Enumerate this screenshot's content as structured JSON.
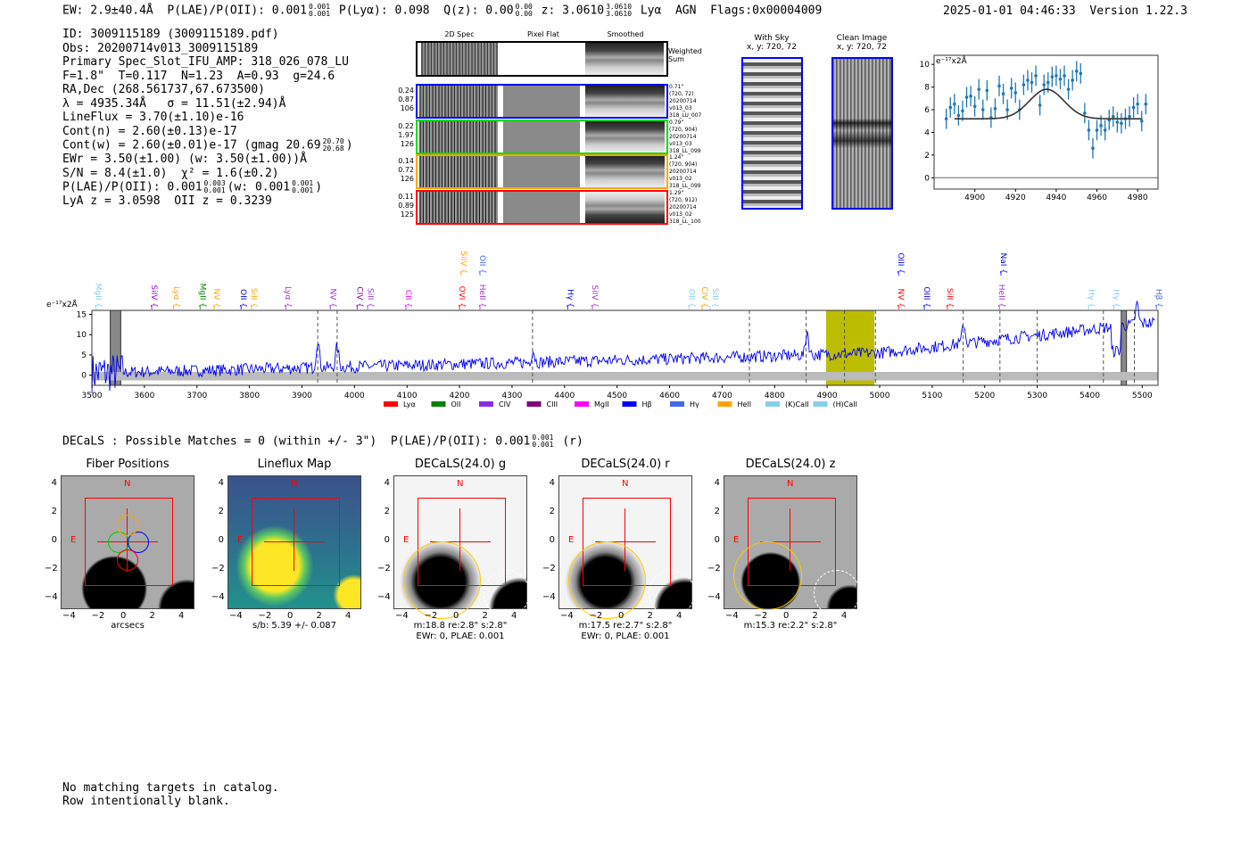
{
  "header": {
    "ew": "EW: 2.9±40.4Å",
    "plae": "P(LAE)/P(OII): 0.001",
    "plae_hi": "0.001",
    "plae_lo": "0.001",
    "plya": "P(Lyα): 0.098",
    "qz": "Q(z): 0.00",
    "qz_hi": "0.00",
    "qz_lo": "0.00",
    "z": "z: 3.0610",
    "z_hi": "3.0610",
    "z_lo": "3.0610",
    "tags": "Lyα  AGN  Flags:0x00004009",
    "date": "2025-01-01 04:46:33",
    "version": "Version 1.22.3"
  },
  "info": {
    "id": "ID: 3009115189 (3009115189.pdf)",
    "obs": "Obs: 20200714v013_3009115189",
    "primary": "Primary Spec_Slot_IFU_AMP: 318_026_078_LU",
    "params": "F=1.8\"  T=0.117  N=1.23  A=0.93  g=24.6",
    "radec": "RA,Dec (268.561737,67.673500)",
    "lambda": "λ = 4935.34Å   σ = 11.51(±2.94)Å",
    "lineflux": "LineFlux = 3.70(±1.10)e-16",
    "contn": "Cont(n) = 2.60(±0.13)e-17",
    "contw": "Cont(w) = 2.60(±0.01)e-17 (gmag 20.69",
    "contw_hi": "20.70",
    "contw_lo": "20.68",
    "contw_end": ")",
    "ewr": "EWr = 3.50(±1.00) (w: 3.50(±1.00))Å",
    "sn": "S/N = 8.4(±1.0)  χ² = 1.6(±0.2)",
    "plae": "P(LAE)/P(OII): 0.001",
    "plae_hi": "0.003",
    "plae_lo": "0.001",
    "plae_w": "(w: 0.001",
    "plae_w_hi": "0.001",
    "plae_w_lo": "0.001",
    "plae_end": ")",
    "z": "LyA z = 3.0598  OII z = 0.3239"
  },
  "cutouts": {
    "col_titles": [
      "2D Spec",
      "Pixel Flat",
      "Smoothed"
    ],
    "weighted": "Weighted\nSum",
    "rows": [
      {
        "color": "#0000ff",
        "left": "0.24\n0.87\n106",
        "right": "0.71\"\n(720, 72)\n20200714\nv013_03\n318_LU_007"
      },
      {
        "color": "#00dd00",
        "left": "0.22\n1.97\n126",
        "right": "0.79\"\n(720, 904)\n20200714\nv013_03\n318_LL_099"
      },
      {
        "color": "#ffa500",
        "left": "0.14\n0.72\n126",
        "right": "1.24\"\n(720, 904)\n20200714\nv013_02\n318_LL_099"
      },
      {
        "color": "#ff0000",
        "left": "0.11\n0.89\n125",
        "right": "1.29\"\n(720, 912)\n20200714\nv013_02\n318_LL_100"
      }
    ]
  },
  "sky": {
    "with_title": "With Sky",
    "with_xy": "x, y: 720, 72",
    "clean_title": "Clean Image",
    "clean_xy": "x, y: 720, 72"
  },
  "chart_data": [
    {
      "type": "scatter",
      "title": "",
      "ylabel": "e⁻¹⁷x2Å",
      "xlim": [
        4880,
        4990
      ],
      "ylim": [
        -1,
        10.8
      ],
      "xticks": [
        "4900",
        "4920",
        "4940",
        "4960",
        "4980"
      ],
      "yticks": [
        "0",
        "2",
        "4",
        "6",
        "8",
        "10"
      ],
      "x": [
        4886,
        4888,
        4890,
        4892,
        4894,
        4896,
        4898,
        4900,
        4902,
        4904,
        4906,
        4908,
        4910,
        4912,
        4914,
        4916,
        4918,
        4920,
        4922,
        4924,
        4926,
        4928,
        4930,
        4932,
        4934,
        4936,
        4938,
        4940,
        4942,
        4944,
        4946,
        4948,
        4950,
        4952,
        4954,
        4956,
        4958,
        4960,
        4962,
        4964,
        4966,
        4968,
        4970,
        4972,
        4974,
        4976,
        4978,
        4980,
        4982,
        4984
      ],
      "y": [
        5.2,
        6.2,
        6.5,
        5.5,
        5.9,
        7.1,
        7.2,
        6.3,
        7.8,
        6.0,
        7.7,
        5.3,
        6.1,
        8.1,
        7.4,
        6.0,
        7.9,
        7.5,
        6.0,
        8.2,
        8.6,
        8.4,
        9.0,
        6.4,
        8.2,
        8.4,
        8.9,
        9.0,
        8.7,
        9.0,
        7.8,
        8.6,
        9.4,
        9.2,
        5.7,
        4.2,
        2.6,
        4.2,
        4.6,
        4.2,
        5.1,
        5.4,
        4.9,
        4.8,
        5.2,
        5.4,
        6.2,
        6.5,
        5.0,
        6.5
      ],
      "yerr": 0.9,
      "fit": {
        "continuum": 5.2,
        "amplitude": 2.6,
        "center": 4935.34,
        "sigma": 8.5,
        "range": [
          4890,
          4982
        ]
      }
    },
    {
      "type": "line",
      "ylabel": "e⁻¹⁷x2Å",
      "xlim": [
        3500,
        5530
      ],
      "ylim": [
        -2.5,
        16
      ],
      "xticks": [
        "3500",
        "3600",
        "3700",
        "3800",
        "3900",
        "4000",
        "4100",
        "4200",
        "4300",
        "4400",
        "4500",
        "4600",
        "4700",
        "4800",
        "4900",
        "5000",
        "5100",
        "5200",
        "5300",
        "5400",
        "5500"
      ],
      "yticks": [
        "0",
        "5",
        "10",
        "15"
      ],
      "highlight_band": [
        4898,
        4990
      ],
      "dashed_lines": [
        3930,
        3967,
        4339,
        4752,
        4860,
        4933,
        4992,
        5159,
        5229,
        5300,
        5426,
        5485
      ],
      "masked": [
        [
          3535,
          3555
        ],
        [
          5460,
          5470
        ]
      ],
      "lines": [
        {
          "name": "MgII",
          "wave": 3508,
          "color": "#87ceeb",
          "row": 0
        },
        {
          "name": "SiIV",
          "wave": 3614,
          "color": "#9400d3",
          "row": 0
        },
        {
          "name": "Lyα",
          "wave": 3656,
          "color": "#ffa500",
          "row": 0
        },
        {
          "name": "MgII",
          "wave": 3706,
          "color": "#008000",
          "row": 0
        },
        {
          "name": "NV",
          "wave": 3733,
          "color": "#ffa500",
          "row": 0
        },
        {
          "name": "OII",
          "wave": 3784,
          "color": "#0000ff",
          "row": 0
        },
        {
          "name": "SiII",
          "wave": 3804,
          "color": "#ffa500",
          "row": 0
        },
        {
          "name": "Lyα",
          "wave": 3869,
          "color": "#9932cc",
          "row": 0
        },
        {
          "name": "NV",
          "wave": 3954,
          "color": "#9932cc",
          "row": 0
        },
        {
          "name": "CIV",
          "wave": 4005,
          "color": "#800080",
          "row": 0
        },
        {
          "name": "SiII",
          "wave": 4025,
          "color": "#9932cc",
          "row": 0
        },
        {
          "name": "CII",
          "wave": 4098,
          "color": "#ff00ff",
          "row": 0
        },
        {
          "name": "OVI",
          "wave": 4200,
          "color": "#ff0000",
          "row": 0
        },
        {
          "name": "SiIV",
          "wave": 4203,
          "color": "#ffa500",
          "row": 1
        },
        {
          "name": "HeII",
          "wave": 4239,
          "color": "#9932cc",
          "row": 0
        },
        {
          "name": "OII",
          "wave": 4239,
          "color": "#4169e1",
          "row": 1
        },
        {
          "name": "Hγ",
          "wave": 4406,
          "color": "#0000ff",
          "row": 0
        },
        {
          "name": "SiIV",
          "wave": 4453,
          "color": "#9932cc",
          "row": 0
        },
        {
          "name": "OII",
          "wave": 4637,
          "color": "#87ceeb",
          "row": 0
        },
        {
          "name": "CIV",
          "wave": 4662,
          "color": "#ffa500",
          "row": 0
        },
        {
          "name": "SiII",
          "wave": 4677,
          "color": "#87ceeb",
          "row": 0
        },
        {
          "name": "NV",
          "wave": 5036,
          "color": "#ff0000",
          "row": 0
        },
        {
          "name": "OIII",
          "wave": 5036,
          "color": "#0000ff",
          "row": 1
        },
        {
          "name": "OIII",
          "wave": 5085,
          "color": "#0000ff",
          "row": 0
        },
        {
          "name": "SiII",
          "wave": 5129,
          "color": "#ff0000",
          "row": 0
        },
        {
          "name": "HeII",
          "wave": 5228,
          "color": "#9932cc",
          "row": 0
        },
        {
          "name": "NaI",
          "wave": 5231,
          "color": "#0000ff",
          "row": 1
        },
        {
          "name": "Hγ",
          "wave": 5398,
          "color": "#87ceeb",
          "row": 0
        },
        {
          "name": "Hγ",
          "wave": 5446,
          "color": "#87ceeb",
          "row": 0
        },
        {
          "name": "Hβ",
          "wave": 5527,
          "color": "#4169e1",
          "row": 0
        }
      ],
      "legend": [
        {
          "label": "Lyα",
          "color": "#ff0000"
        },
        {
          "label": "OII",
          "color": "#008000"
        },
        {
          "label": "CIV",
          "color": "#8a2be2"
        },
        {
          "label": "CIII",
          "color": "#800080"
        },
        {
          "label": "MgII",
          "color": "#ff00ff"
        },
        {
          "label": "Hβ",
          "color": "#0000ff"
        },
        {
          "label": "Hγ",
          "color": "#4169e1"
        },
        {
          "label": "HeII",
          "color": "#ffa500"
        },
        {
          "label": "(K)CaII",
          "color": "#87ceeb"
        },
        {
          "label": "(H)CaII",
          "color": "#87ceeb"
        }
      ]
    }
  ],
  "decals": {
    "summary": "DECaLS : Possible Matches = 0 (within +/- 3\")  P(LAE)/P(OII): 0.001",
    "hi": "0.001",
    "lo": "0.001",
    "band": "(r)"
  },
  "panels": [
    {
      "title": "Fiber Positions",
      "caption": "arcsecs",
      "caption2": ""
    },
    {
      "title": "Lineflux Map",
      "caption": "s/b: 5.39 +/- 0.087",
      "caption2": ""
    },
    {
      "title": "DECaLS(24.0) g",
      "caption": "m:18.8  re:2.8\"  s:2.8\"",
      "caption2": "EWr: 0, PLAE: 0.001"
    },
    {
      "title": "DECaLS(24.0) r",
      "caption": "m:17.5  re:2.7\"  s:2.8\"",
      "caption2": "EWr: 0, PLAE: 0.001"
    },
    {
      "title": "DECaLS(24.0) z",
      "caption": "m:15.3  re:2.2\"  s:2.8\"",
      "caption2": ""
    }
  ],
  "panel_labels": {
    "north": "N",
    "east": "E",
    "ticks": [
      "4",
      "2",
      "0",
      "−2",
      "−4"
    ],
    "xticks": [
      "−4",
      "−2",
      "0",
      "2",
      "4"
    ]
  },
  "footer": {
    "line1": "No matching targets in catalog.",
    "line2": "Row intentionally blank."
  }
}
